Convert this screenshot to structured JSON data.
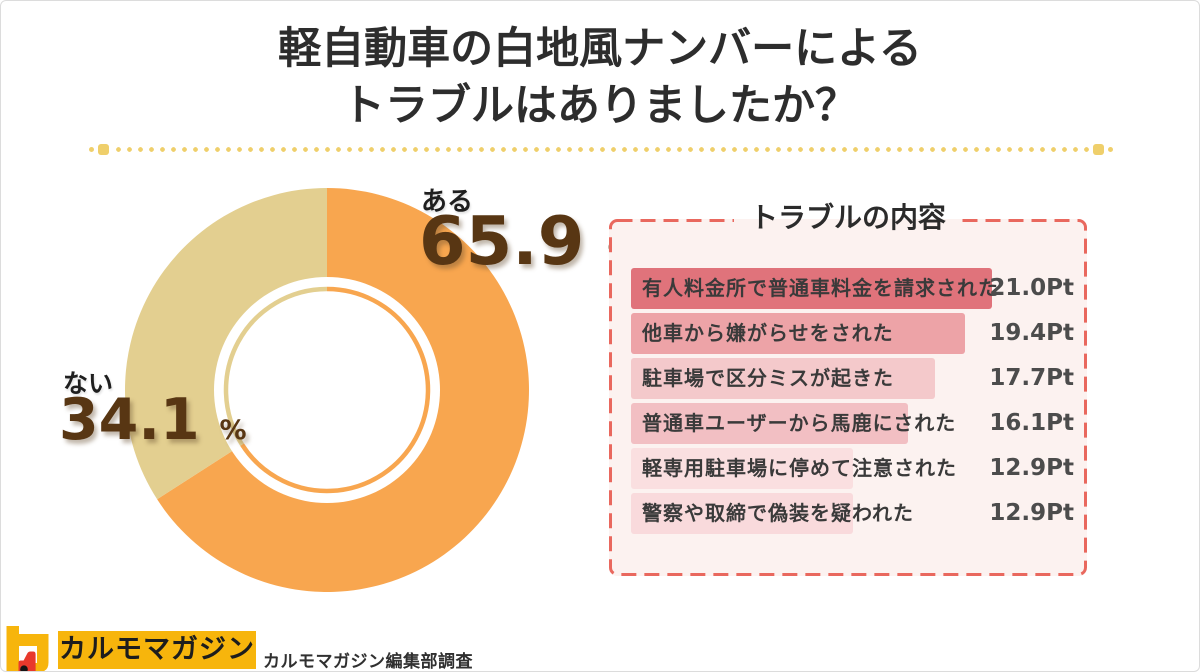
{
  "title": {
    "line1": "軽自動車の白地風ナンバーによる",
    "line2": "トラブルはありましたか？"
  },
  "donut": {
    "segments": [
      {
        "label": "ある",
        "value": "65.9",
        "unit": "%"
      },
      {
        "label": "ない",
        "value": "34.1",
        "unit": "%"
      }
    ]
  },
  "panel": {
    "title": "トラブルの内容",
    "items": [
      {
        "label": "有人料金所で普通車料金を請求された",
        "value_text": "21.0Pt"
      },
      {
        "label": "他車から嫌がらせをされた",
        "value_text": "19.4Pt"
      },
      {
        "label": "駐車場で区分ミスが起きた",
        "value_text": "17.7Pt"
      },
      {
        "label": "普通車ユーザーから馬鹿にされた",
        "value_text": "16.1Pt"
      },
      {
        "label": "軽専用駐車場に停めて注意された",
        "value_text": "12.9Pt"
      },
      {
        "label": "警察や取締で偽装を疑われた",
        "value_text": "12.9Pt"
      }
    ]
  },
  "footer": {
    "logo_text": "カルモマガジン",
    "source": "カルモマガジン編集部調査"
  },
  "colors": {
    "divider_dot": "#EFCF6B",
    "panel_bg": "#FCF2F0",
    "panel_border": "#E9685E",
    "number_brown": "#583613",
    "logo_yellow": "#F7B50C",
    "logo_red": "#E8392C"
  },
  "chart_data": [
    {
      "type": "pie",
      "donut": true,
      "title": "軽自動車の白地風ナンバーによるトラブルはありましたか？",
      "labels": [
        "ある",
        "ない"
      ],
      "values": [
        65.9,
        34.1
      ],
      "unit": "%",
      "colors": [
        "#F8A64F",
        "#E3CF90"
      ],
      "start_angle_deg": 0,
      "direction": "clockwise",
      "legend_position": "callout-labels"
    },
    {
      "type": "bar",
      "orientation": "horizontal",
      "title": "トラブルの内容",
      "categories": [
        "有人料金所で普通車料金を請求された",
        "他車から嫌がらせをされた",
        "駐車場で区分ミスが起きた",
        "普通車ユーザーから馬鹿にされた",
        "軽専用駐車場に停めて注意された",
        "警察や取締で偽装を疑われた"
      ],
      "values": [
        21.0,
        19.4,
        17.7,
        16.1,
        12.9,
        12.9
      ],
      "unit": "Pt",
      "bar_colors": [
        "#E0737B",
        "#EDA3A7",
        "#F4C9CB",
        "#F2BFC3",
        "#FADFE0",
        "#F9DADC"
      ],
      "xlim": [
        0,
        25
      ],
      "grid": false
    }
  ]
}
